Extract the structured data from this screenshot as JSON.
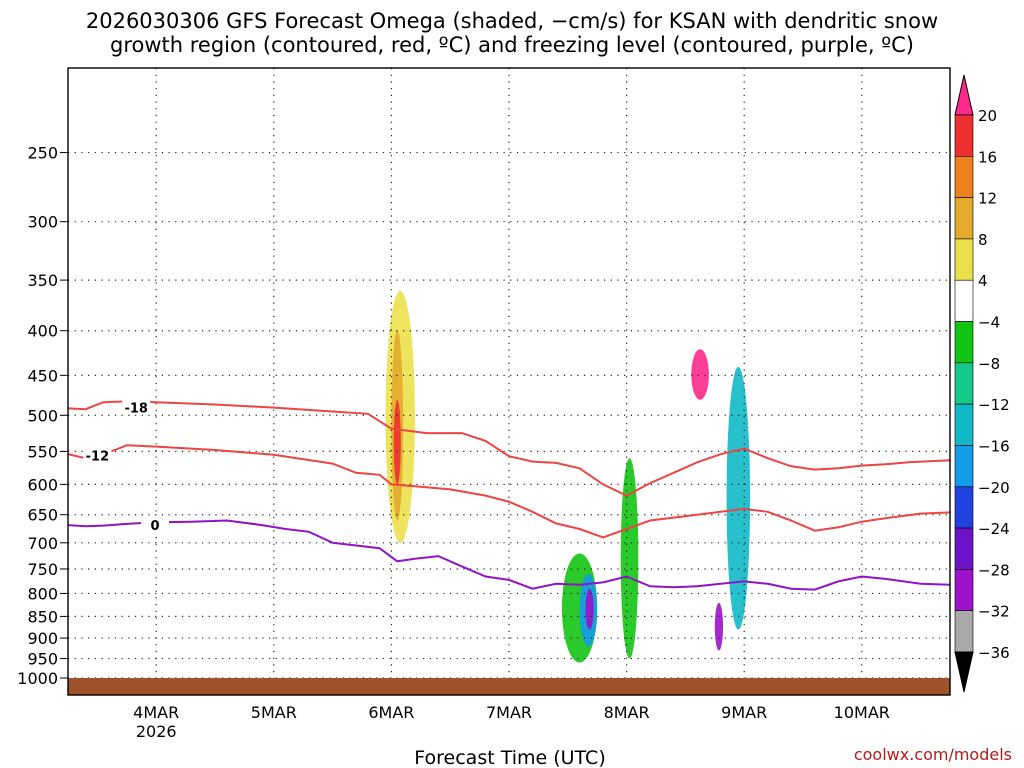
{
  "chart_data": {
    "type": "contour",
    "title_line1": "2026030306 GFS Forecast Omega (shaded, −cm/s) for KSAN with dendritic snow",
    "title_line2": "growth region (contoured, red, ºC) and freezing level (contoured, purple, ºC)",
    "xlabel": "Forecast Time (UTC)",
    "credit": "coolwx.com/models",
    "x_start_day": 3.25,
    "x_end_day": 10.75,
    "x_ticks": [
      {
        "day": 4,
        "label": "4MAR",
        "sub": "2026"
      },
      {
        "day": 5,
        "label": "5MAR",
        "sub": ""
      },
      {
        "day": 6,
        "label": "6MAR",
        "sub": ""
      },
      {
        "day": 7,
        "label": "7MAR",
        "sub": ""
      },
      {
        "day": 8,
        "label": "8MAR",
        "sub": ""
      },
      {
        "day": 9,
        "label": "9MAR",
        "sub": ""
      },
      {
        "day": 10,
        "label": "10MAR",
        "sub": ""
      }
    ],
    "y_ticks": [
      "250",
      "300",
      "350",
      "400",
      "450",
      "500",
      "550",
      "600",
      "650",
      "700",
      "750",
      "800",
      "850",
      "900",
      "950",
      "1000"
    ],
    "y_range_hpa": [
      200,
      1000
    ],
    "colorbar": {
      "labels": [
        "20",
        "16",
        "12",
        "8",
        "4",
        "−4",
        "−8",
        "−12",
        "−16",
        "−20",
        "−24",
        "−28",
        "−32",
        "−36"
      ],
      "colors": [
        "#ff2a8a",
        "#ee3030",
        "#f07f1e",
        "#e3aa2c",
        "#ece04a",
        "#ffffff",
        "#12c412",
        "#14c88a",
        "#11b9c7",
        "#149bea",
        "#2242e0",
        "#6a13c8",
        "#9b12c8",
        "#a9a9a9",
        "#000000"
      ]
    },
    "series": [
      {
        "name": "-18",
        "color": "#ee4444",
        "label_day": 3.83,
        "label_hpa": 490,
        "x": [
          3.25,
          3.4,
          3.55,
          3.75,
          4,
          4.5,
          5,
          5.5,
          5.8,
          6,
          6.3,
          6.6,
          6.8,
          7,
          7.2,
          7.4,
          7.6,
          7.8,
          8,
          8.2,
          8.4,
          8.6,
          8.8,
          9,
          9.2,
          9.4,
          9.6,
          9.8,
          10,
          10.2,
          10.4,
          10.75
        ],
        "y": [
          491,
          492,
          483,
          482,
          483,
          486,
          490,
          495,
          498,
          518,
          524,
          524,
          535,
          557,
          565,
          567,
          575,
          600,
          618,
          598,
          582,
          566,
          554,
          546,
          560,
          572,
          577,
          575,
          571,
          569,
          566,
          563
        ]
      },
      {
        "name": "-12",
        "color": "#ee4444",
        "label_day": 3.5,
        "label_hpa": 556,
        "x": [
          3.25,
          3.4,
          3.5,
          3.65,
          3.75,
          4,
          4.5,
          5,
          5.5,
          5.7,
          5.9,
          6,
          6.2,
          6.5,
          6.8,
          7,
          7.2,
          7.4,
          7.6,
          7.8,
          8,
          8.2,
          8.4,
          8.6,
          8.8,
          9,
          9.2,
          9.4,
          9.6,
          9.8,
          10,
          10.2,
          10.5,
          10.75
        ],
        "y": [
          554,
          560,
          557,
          548,
          541,
          543,
          548,
          555,
          568,
          582,
          585,
          600,
          603,
          608,
          618,
          628,
          645,
          665,
          675,
          690,
          675,
          660,
          655,
          650,
          645,
          640,
          645,
          660,
          678,
          672,
          662,
          656,
          648,
          646
        ]
      },
      {
        "name": "0",
        "color": "#9014c4",
        "label_day": 3.99,
        "label_hpa": 668,
        "x": [
          3.25,
          3.4,
          3.55,
          3.75,
          4,
          4.3,
          4.6,
          4.9,
          5.1,
          5.3,
          5.5,
          5.7,
          5.9,
          6.05,
          6.2,
          6.4,
          6.55,
          6.8,
          7,
          7.2,
          7.4,
          7.6,
          7.8,
          8,
          8.2,
          8.4,
          8.6,
          8.8,
          9,
          9.2,
          9.4,
          9.6,
          9.8,
          10,
          10.2,
          10.5,
          10.75
        ],
        "y": [
          668,
          670,
          669,
          666,
          663,
          662,
          660,
          668,
          675,
          680,
          700,
          705,
          710,
          735,
          730,
          725,
          740,
          765,
          772,
          790,
          780,
          782,
          777,
          765,
          785,
          787,
          785,
          780,
          775,
          780,
          790,
          792,
          775,
          765,
          770,
          780,
          782
        ]
      }
    ],
    "blobs": [
      {
        "d0": 5.95,
        "d1": 6.2,
        "p0": 360,
        "p1": 700,
        "c": "#ece04a"
      },
      {
        "d0": 6.0,
        "d1": 6.1,
        "p0": 400,
        "p1": 660,
        "c": "#e3aa2c"
      },
      {
        "d0": 6.02,
        "d1": 6.08,
        "p0": 480,
        "p1": 600,
        "c": "#ee3030"
      },
      {
        "d0": 7.45,
        "d1": 7.75,
        "p0": 720,
        "p1": 960,
        "c": "#12c412"
      },
      {
        "d0": 7.6,
        "d1": 7.75,
        "p0": 760,
        "p1": 920,
        "c": "#149bea"
      },
      {
        "d0": 7.65,
        "d1": 7.72,
        "p0": 790,
        "p1": 880,
        "c": "#9b12c8"
      },
      {
        "d0": 7.95,
        "d1": 8.1,
        "p0": 560,
        "p1": 950,
        "c": "#12c412"
      },
      {
        "d0": 8.55,
        "d1": 8.7,
        "p0": 420,
        "p1": 480,
        "c": "#ff2a8a"
      },
      {
        "d0": 8.85,
        "d1": 9.05,
        "p0": 440,
        "p1": 880,
        "c": "#11b9c7"
      },
      {
        "d0": 8.75,
        "d1": 8.82,
        "p0": 820,
        "p1": 930,
        "c": "#9b12c8"
      }
    ]
  }
}
